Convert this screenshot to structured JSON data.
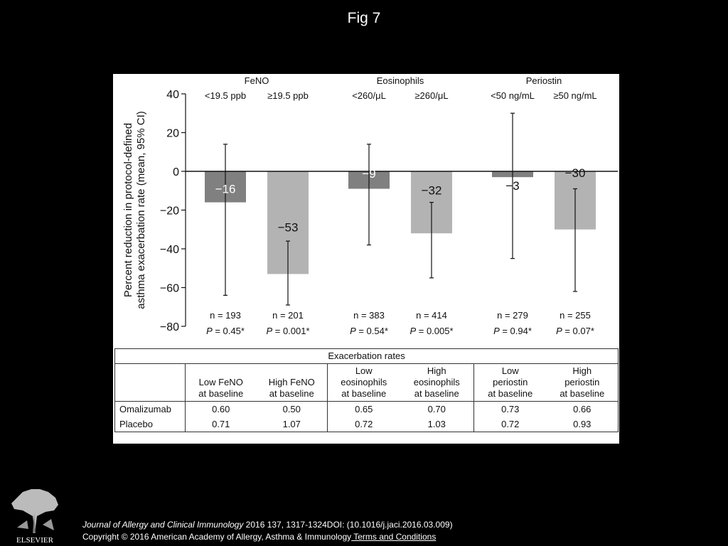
{
  "slide_title": "Fig 7",
  "colors": {
    "dark_bar": "#808080",
    "light_bar": "#b3b3b3",
    "background": "#000000",
    "panel": "#ffffff"
  },
  "chart_data": {
    "type": "bar",
    "ylabel_line1": "Percent reduction in protocol-defined",
    "ylabel_line2": "asthma exacerbation rate (mean, 95% CI)",
    "ylim": [
      -80,
      40
    ],
    "yticks": [
      40,
      20,
      0,
      -20,
      -40,
      -60,
      -80
    ],
    "ytick_labels": [
      "40",
      "20",
      "0",
      "−20",
      "−40",
      "−60",
      "−80"
    ],
    "groups": [
      {
        "name": "FeNO",
        "categories": [
          "<19.5 ppb",
          "≥19.5 ppb"
        ]
      },
      {
        "name": "Eosinophils",
        "categories": [
          "<260/μL",
          "≥260/μL"
        ]
      },
      {
        "name": "Periostin",
        "categories": [
          "<50 ng/mL",
          "≥50 ng/mL"
        ]
      }
    ],
    "bars": [
      {
        "category": "<19.5 ppb",
        "value": -16,
        "label": "−16",
        "ci": [
          14,
          -64
        ],
        "n": "n = 193",
        "p": "0.45*",
        "shade": "dark"
      },
      {
        "category": "≥19.5 ppb",
        "value": -53,
        "label": "−53",
        "ci": [
          -36,
          -69
        ],
        "n": "n = 201",
        "p": "0.001*",
        "shade": "light"
      },
      {
        "category": "<260/μL",
        "value": -9,
        "label": "−9",
        "ci": [
          14,
          -38
        ],
        "n": "n = 383",
        "p": "0.54*",
        "shade": "dark"
      },
      {
        "category": "≥260/μL",
        "value": -32,
        "label": "−32",
        "ci": [
          -16,
          -55
        ],
        "n": "n = 414",
        "p": "0.005*",
        "shade": "light"
      },
      {
        "category": "<50 ng/mL",
        "value": -3,
        "label": "−3",
        "ci": [
          30,
          -45
        ],
        "n": "n = 279",
        "p": "0.94*",
        "shade": "dark"
      },
      {
        "category": "≥50 ng/mL",
        "value": -30,
        "label": "−30",
        "ci": [
          -9,
          -62
        ],
        "n": "n = 255",
        "p": "0.07*",
        "shade": "light"
      }
    ],
    "p_prefix": "P",
    "p_eq": " = "
  },
  "table": {
    "caption": "Exacerbation rates",
    "headers": [
      "Low FeNO\nat baseline",
      "High FeNO\nat baseline",
      "Low\neosinophils\nat baseline",
      "High\neosinophils\nat baseline",
      "Low\nperiostin\nat baseline",
      "High\nperiostin\nat baseline"
    ],
    "rows": [
      {
        "label": "Omalizumab",
        "values": [
          "0.60",
          "0.50",
          "0.65",
          "0.70",
          "0.73",
          "0.66"
        ]
      },
      {
        "label": "Placebo",
        "values": [
          "0.71",
          "1.07",
          "0.72",
          "1.03",
          "0.72",
          "0.93"
        ]
      }
    ]
  },
  "footer": {
    "logo_text": "ELSEVIER",
    "citation_journal": "Journal of Allergy and Clinical Immunology",
    "citation_rest": " 2016 137, 1317-1324DOI: (10.1016/j.jaci.2016.03.009)",
    "copyright": "Copyright © 2016 American Academy of Allergy, Asthma & Immunology",
    "link": " Terms and Conditions"
  }
}
